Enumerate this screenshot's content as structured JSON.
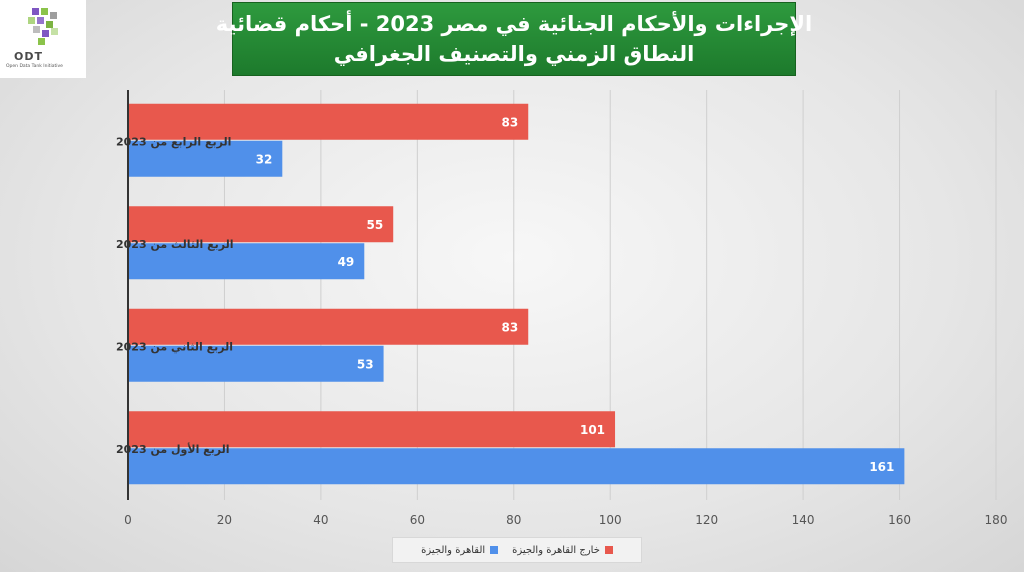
{
  "logo": {
    "name": "ODT",
    "tagline": "Open Data Tank Initiative"
  },
  "title": {
    "line1": "الإجراءات والأحكام الجنائية في مصر 2023 - أحكام قضائية",
    "line2": "النطاق الزمني والتصنيف الجغرافي"
  },
  "chart_data": {
    "type": "bar",
    "orientation": "horizontal",
    "categories": [
      "الربع الرابع من 2023",
      "الربع الثالث من 2023",
      "الربع الثاني من 2023",
      "الربع الأول من 2023"
    ],
    "series": [
      {
        "name": "خارج القاهرة والجيزة",
        "color": "#e8584d",
        "values": [
          83,
          55,
          83,
          101
        ]
      },
      {
        "name": "القاهرة والجيزة",
        "color": "#5090ea",
        "values": [
          32,
          49,
          53,
          161
        ]
      }
    ],
    "xlim": [
      0,
      180
    ],
    "xticks": [
      0,
      20,
      40,
      60,
      80,
      100,
      120,
      140,
      160,
      180
    ],
    "grid": true,
    "legend_position": "bottom",
    "data_labels": true
  }
}
